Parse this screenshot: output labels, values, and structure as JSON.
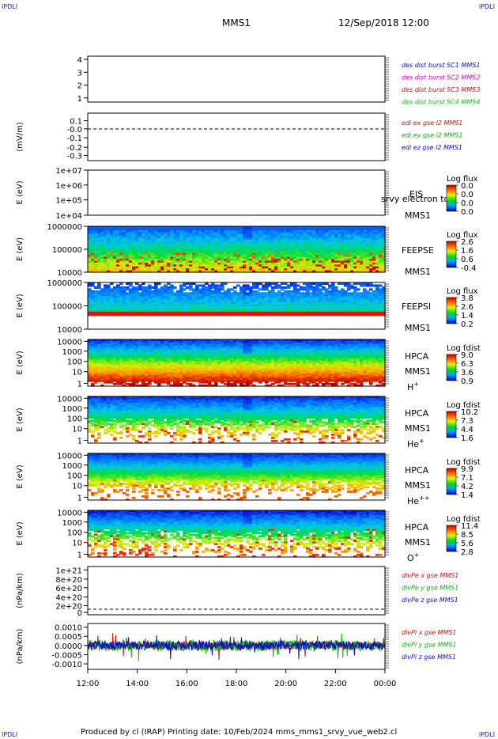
{
  "corner_label": "IPDLI",
  "header": {
    "title": "MMS1",
    "datetime": "12/Sep/2018 12:00"
  },
  "footer": "Produced by cl (IRAP)   Printing date: 10/Feb/2024   mms_mms1_srvy_vue_web2.cl",
  "chart_data": {
    "type": "multi-panel time series / spectrogram",
    "x_tick_labels": [
      "12:00",
      "14:00",
      "16:00",
      "18:00",
      "20:00",
      "22:00",
      "00:00"
    ],
    "panels": [
      {
        "id": "sc-distance",
        "type": "line",
        "ylabel": "",
        "yticks": [
          "4",
          "3",
          "2",
          "1"
        ],
        "legend": [
          {
            "text": "des dist burst SC1 MMS1",
            "color": "#1010c0"
          },
          {
            "text": "des dist burst SC2 MMS2",
            "color": "#d000d0"
          },
          {
            "text": "des dist burst SC3 MMS3",
            "color": "#d01010"
          },
          {
            "text": "des dist burst SC4 MMS4",
            "color": "#10c010"
          }
        ]
      },
      {
        "id": "edi-e",
        "type": "line",
        "ylabel": "(mV/m)",
        "yticks": [
          "0.1",
          "-0.0",
          "-0.1",
          "-0.2",
          "-0.3"
        ],
        "legend": [
          {
            "text": "edi ex gse l2 MMS1",
            "color": "#d01010"
          },
          {
            "text": "edi ey gse l2 MMS1",
            "color": "#10b010"
          },
          {
            "text": "edi ez gse l2 MMS1",
            "color": "#1010c0"
          }
        ]
      },
      {
        "id": "eis",
        "type": "heatmap",
        "ylabel": "E (eV)",
        "yticks": [
          "1e+07",
          "1e+06",
          "1e+05",
          "1e+04"
        ],
        "inst": "EIS",
        "sc": "MMS1",
        "overlay": "srvy electron to",
        "cbar_title": "Log flux",
        "cbar": [
          "0.0",
          "0.0",
          "0.0",
          "0.0"
        ]
      },
      {
        "id": "feepse",
        "type": "heatmap",
        "ylabel": "E (eV)",
        "yticks": [
          "1000000",
          "100000",
          "10000"
        ],
        "inst": "FEEPSE",
        "sc": "MMS1",
        "cbar_title": "Log flux",
        "cbar": [
          "2.6",
          "1.6",
          "0.6",
          "-0.4"
        ]
      },
      {
        "id": "feepsi",
        "type": "heatmap",
        "ylabel": "E (eV)",
        "yticks": [
          "1000000",
          "100000",
          "10000"
        ],
        "inst": "FEEPSI",
        "sc": "MMS1",
        "cbar_title": "Log flux",
        "cbar": [
          "3.8",
          "2.6",
          "1.4",
          "0.2"
        ]
      },
      {
        "id": "hpca-h",
        "type": "heatmap",
        "ylabel": "E (eV)",
        "yticks": [
          "10000",
          "1000",
          "100",
          "10",
          "1"
        ],
        "inst": "HPCA",
        "sc": "MMS1",
        "species": "H",
        "charge": "+",
        "cbar_title": "Log fdist",
        "cbar": [
          "9.0",
          "6.3",
          "3.6",
          "0.9"
        ]
      },
      {
        "id": "hpca-he1",
        "type": "heatmap",
        "ylabel": "E (eV)",
        "yticks": [
          "10000",
          "1000",
          "100",
          "10",
          "1"
        ],
        "inst": "HPCA",
        "sc": "MMS1",
        "species": "He",
        "charge": "+",
        "cbar_title": "Log fdist",
        "cbar": [
          "10.2",
          "7.3",
          "4.4",
          "1.6"
        ]
      },
      {
        "id": "hpca-he2",
        "type": "heatmap",
        "ylabel": "E (eV)",
        "yticks": [
          "10000",
          "1000",
          "100",
          "10",
          "1"
        ],
        "inst": "HPCA",
        "sc": "MMS1",
        "species": "He",
        "charge": "++",
        "cbar_title": "Log fdist",
        "cbar": [
          "9.9",
          "7.1",
          "4.2",
          "1.4"
        ]
      },
      {
        "id": "hpca-o",
        "type": "heatmap",
        "ylabel": "E (eV)",
        "yticks": [
          "10000",
          "1000",
          "100",
          "10",
          "1"
        ],
        "inst": "HPCA",
        "sc": "MMS1",
        "species": "O",
        "charge": "+",
        "cbar_title": "Log fdist",
        "cbar": [
          "11.4",
          "8.5",
          "5.6",
          "2.8"
        ]
      },
      {
        "id": "divpe",
        "type": "line",
        "ylabel": "(nPa/km)",
        "yticks": [
          "1e+21",
          "8e+20",
          "6e+20",
          "4e+20",
          "2e+20",
          "0"
        ],
        "legend": [
          {
            "text": "divPe x gse MMS1",
            "color": "#d01010"
          },
          {
            "text": "divPe y gse MMS1",
            "color": "#10b010"
          },
          {
            "text": "divPe z gse MMS1",
            "color": "#1010c0"
          }
        ]
      },
      {
        "id": "divpi",
        "type": "line",
        "ylabel": "(nPa/km)",
        "yticks": [
          "0.0010",
          "0.0005",
          "0.0000",
          "-0.0005",
          "-0.0010"
        ],
        "ylim": [
          -0.0013,
          0.0012
        ],
        "legend": [
          {
            "text": "divPi x gse MMS1",
            "color": "#d01010"
          },
          {
            "text": "divPi y gse MMS1",
            "color": "#10b010"
          },
          {
            "text": "divPi z gse MMS1",
            "color": "#1010c0"
          }
        ]
      }
    ]
  }
}
